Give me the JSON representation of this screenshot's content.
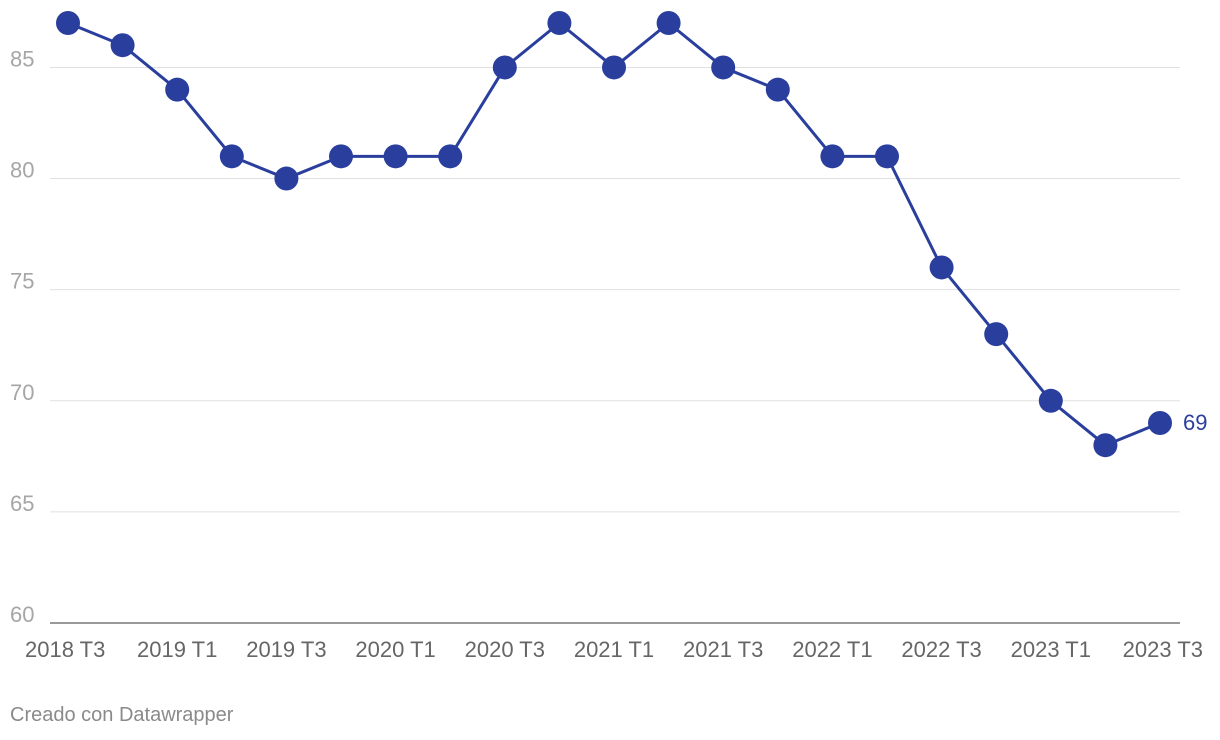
{
  "chart_data": {
    "type": "line",
    "x": [
      "2018 T3",
      "2018 T4",
      "2019 T1",
      "2019 T2",
      "2019 T3",
      "2019 T4",
      "2020 T1",
      "2020 T2",
      "2020 T3",
      "2020 T4",
      "2021 T1",
      "2021 T2",
      "2021 T3",
      "2021 T4",
      "2022 T1",
      "2022 T2",
      "2022 T3",
      "2022 T4",
      "2023 T1",
      "2023 T2",
      "2023 T3"
    ],
    "series": [
      {
        "values": [
          87,
          86,
          84,
          81,
          80,
          81,
          81,
          81,
          85,
          87,
          85,
          87,
          85,
          84,
          81,
          81,
          76,
          73,
          70,
          68,
          69
        ]
      }
    ],
    "ylim": [
      60,
      87
    ],
    "yticks": [
      "60",
      "65",
      "70",
      "75",
      "80",
      "85"
    ],
    "xtick_labels": [
      "2018 T3",
      "2019 T1",
      "2019 T3",
      "2020 T1",
      "2020 T3",
      "2021 T1",
      "2021 T3",
      "2022 T1",
      "2022 T3",
      "2023 T1",
      "2023 T3"
    ],
    "end_label": "69",
    "grid": true,
    "colors": {
      "line": "#2a3f9d",
      "grid": "#e0e0e0",
      "ytick": "#a6a6a6",
      "xtick": "#666666"
    }
  },
  "footer": {
    "credit": "Creado con Datawrapper"
  }
}
